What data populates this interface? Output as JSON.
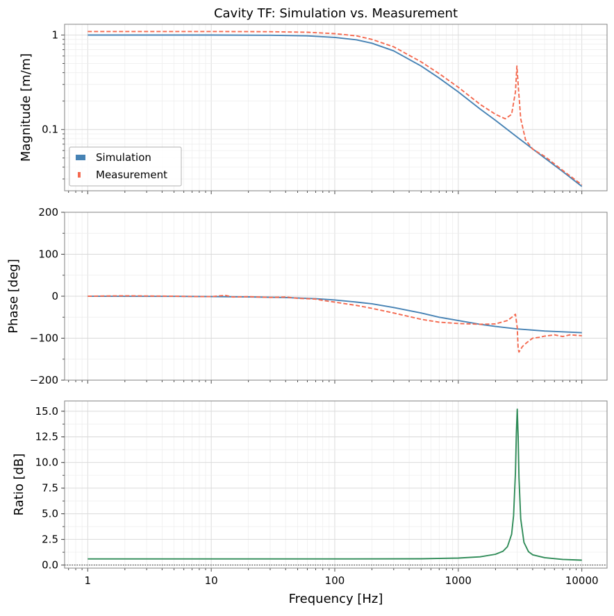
{
  "chart_data": [
    {
      "type": "line",
      "title": "Cavity TF: Simulation vs. Measurement",
      "xlabel": "",
      "ylabel": "Magnitude [m/m]",
      "xscale": "log",
      "yscale": "log",
      "xlim": [
        0.65,
        16000
      ],
      "ylim": [
        0.0225,
        1.3
      ],
      "y_tick_labels": [
        "0.1",
        "1"
      ],
      "grid": true,
      "legend": {
        "placement": "lower-left",
        "entries": [
          "Simulation",
          "Measurement"
        ]
      },
      "series": [
        {
          "name": "Simulation",
          "color": "#4682b4",
          "style": "solid",
          "x": [
            1,
            10,
            30,
            60,
            100,
            150,
            200,
            300,
            500,
            700,
            1000,
            1500,
            2000,
            3000,
            5000,
            7000,
            10000
          ],
          "y": [
            1.0,
            1.0,
            0.995,
            0.98,
            0.945,
            0.89,
            0.82,
            0.68,
            0.47,
            0.35,
            0.25,
            0.165,
            0.125,
            0.083,
            0.05,
            0.036,
            0.025
          ]
        },
        {
          "name": "Measurement",
          "color": "#f4694f",
          "style": "dashed",
          "x": [
            1,
            10,
            30,
            60,
            100,
            150,
            200,
            300,
            500,
            700,
            1000,
            1500,
            2000,
            2400,
            2700,
            2900,
            2980,
            3050,
            3200,
            3500,
            4000,
            5000,
            7000,
            10000
          ],
          "y": [
            1.09,
            1.09,
            1.085,
            1.07,
            1.035,
            0.98,
            0.9,
            0.75,
            0.52,
            0.39,
            0.28,
            0.185,
            0.145,
            0.13,
            0.145,
            0.25,
            0.47,
            0.3,
            0.13,
            0.078,
            0.062,
            0.052,
            0.037,
            0.026
          ]
        }
      ]
    },
    {
      "type": "line",
      "title": "",
      "xlabel": "",
      "ylabel": "Phase [deg]",
      "xscale": "log",
      "xlim": [
        0.65,
        16000
      ],
      "ylim": [
        -200,
        200
      ],
      "y_ticks": [
        -200,
        -100,
        0,
        100,
        200
      ],
      "y_tick_labels": [
        "−200",
        "−100",
        "0",
        "100",
        "200"
      ],
      "grid": true,
      "series": [
        {
          "name": "Simulation",
          "color": "#4682b4",
          "style": "solid",
          "x": [
            1,
            5,
            10,
            20,
            40,
            70,
            100,
            150,
            200,
            300,
            500,
            700,
            1000,
            1500,
            2000,
            3000,
            5000,
            10000
          ],
          "y": [
            -0.1,
            -0.4,
            -0.8,
            -1.6,
            -3.2,
            -6,
            -9,
            -14,
            -18,
            -27,
            -40,
            -50,
            -58,
            -67,
            -72,
            -78,
            -83,
            -87
          ]
        },
        {
          "name": "Measurement",
          "color": "#f4694f",
          "style": "dashed",
          "x": [
            1,
            2,
            3,
            5,
            8,
            10,
            13,
            15,
            20,
            30,
            40,
            50,
            70,
            80,
            90,
            100,
            150,
            200,
            300,
            500,
            700,
            1000,
            1500,
            2000,
            2500,
            2800,
            2900,
            3000,
            3050,
            3100,
            3300,
            3600,
            4000,
            4500,
            5000,
            6000,
            7000,
            8000,
            10000
          ],
          "y": [
            0,
            1,
            0.5,
            0,
            -1,
            -1,
            2,
            -2,
            -1,
            -3,
            -2,
            -5,
            -7,
            -10,
            -12,
            -14,
            -22,
            -29,
            -40,
            -55,
            -62,
            -65,
            -67,
            -66,
            -58,
            -47,
            -43,
            -75,
            -125,
            -133,
            -120,
            -110,
            -100,
            -98,
            -95,
            -92,
            -96,
            -92,
            -94
          ]
        }
      ]
    },
    {
      "type": "line",
      "title": "",
      "xlabel": "Frequency [Hz]",
      "ylabel": "Ratio [dB]",
      "xscale": "log",
      "xlim": [
        0.65,
        16000
      ],
      "ylim": [
        -0.3,
        16
      ],
      "x_ticks": [
        1,
        10,
        100,
        1000,
        10000
      ],
      "x_tick_labels": [
        "1",
        "10",
        "100",
        "1000",
        "10000"
      ],
      "y_ticks": [
        0.0,
        2.5,
        5.0,
        7.5,
        10.0,
        12.5,
        15.0
      ],
      "y_tick_labels": [
        "0.0",
        "2.5",
        "5.0",
        "7.5",
        "10.0",
        "12.5",
        "15.0"
      ],
      "grid": true,
      "reference_line": {
        "y": 0,
        "style": "dotted",
        "color": "#000000"
      },
      "series": [
        {
          "color": "#2e8b57",
          "style": "solid",
          "x": [
            1,
            10,
            100,
            500,
            1000,
            1500,
            2000,
            2300,
            2500,
            2700,
            2800,
            2900,
            2950,
            3000,
            3050,
            3100,
            3200,
            3400,
            3700,
            4000,
            5000,
            7000,
            10000
          ],
          "y": [
            0.6,
            0.6,
            0.6,
            0.61,
            0.68,
            0.8,
            1.05,
            1.35,
            1.8,
            3.0,
            4.8,
            9.0,
            12.8,
            15.2,
            12.5,
            8.5,
            4.5,
            2.2,
            1.3,
            1.0,
            0.72,
            0.55,
            0.48
          ]
        }
      ]
    }
  ]
}
